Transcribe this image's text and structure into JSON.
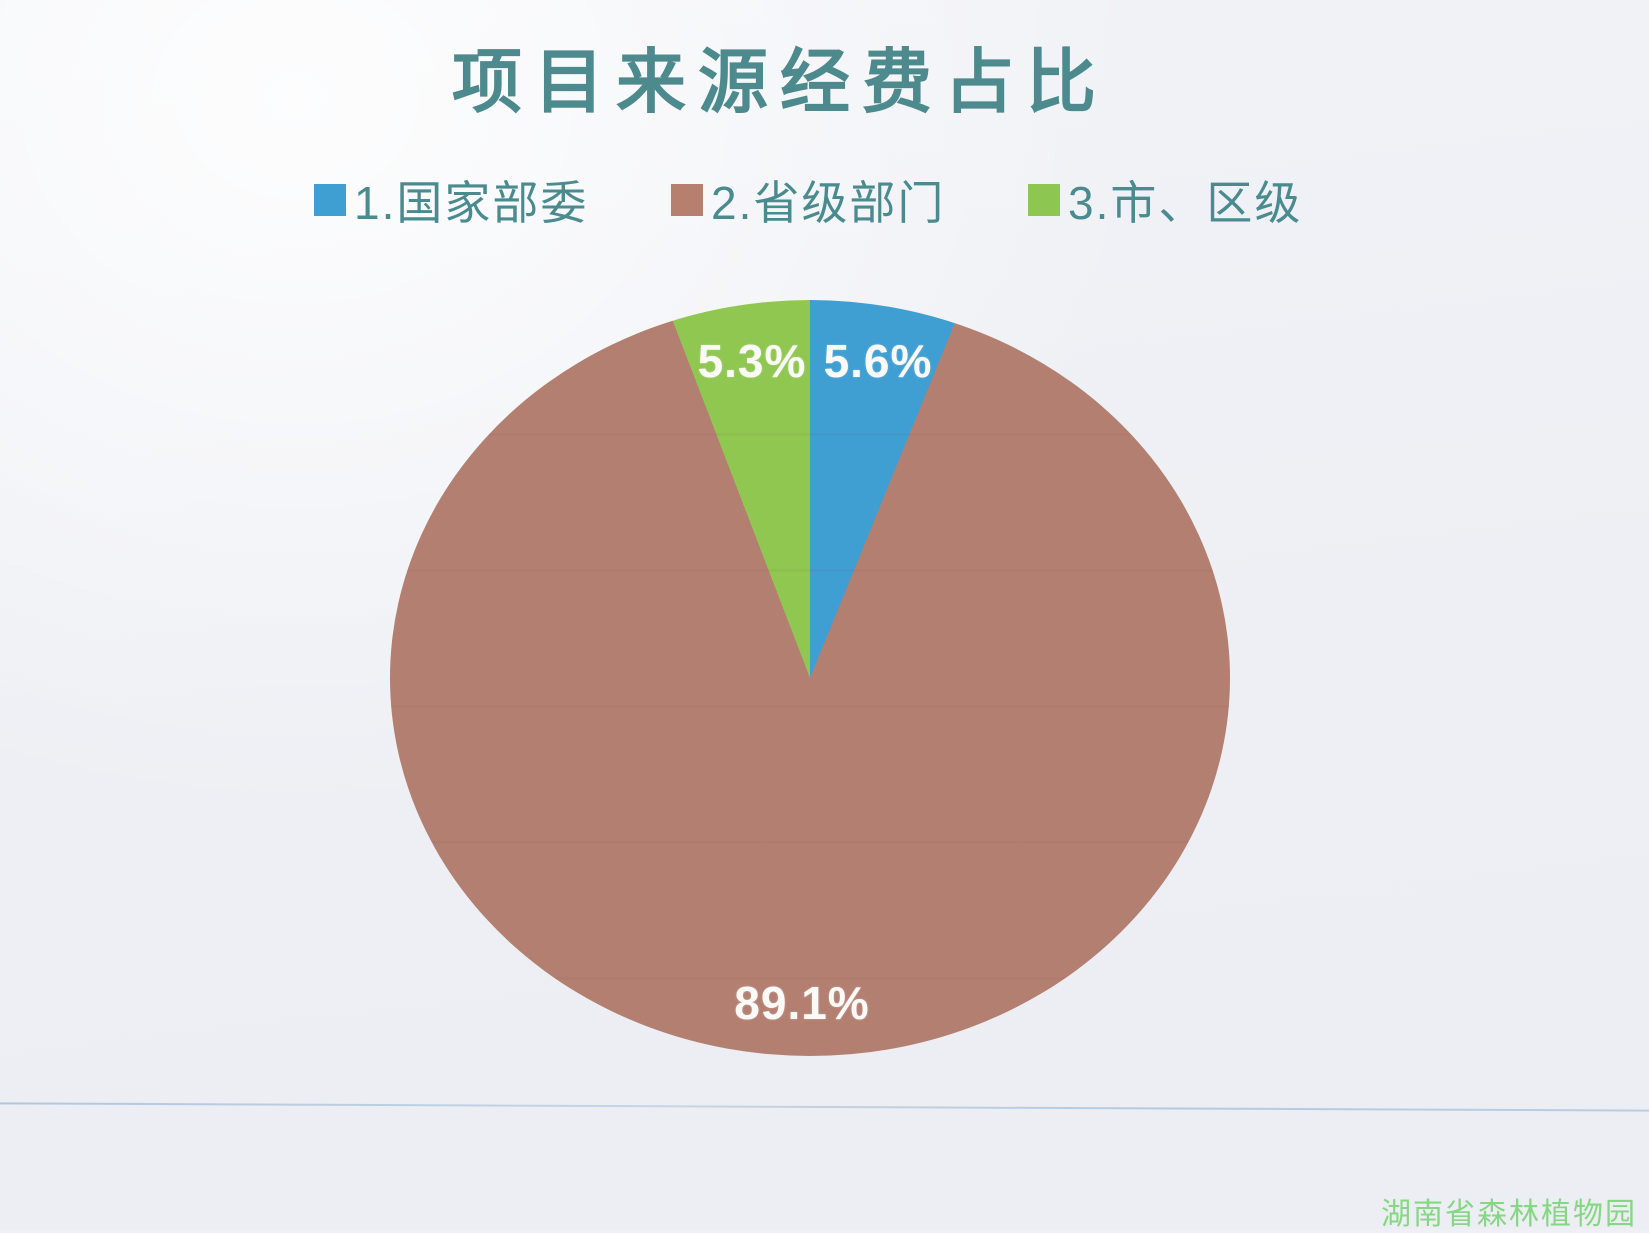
{
  "title": "项目来源经费占比",
  "title_color": "#4d8a8e",
  "legend": {
    "position": "top",
    "text_color": "#4a8b90",
    "items": [
      {
        "label": "1.国家部委",
        "color": "#3f9ed2"
      },
      {
        "label": "2.省级部门",
        "color": "#b77f6e"
      },
      {
        "label": "3.市、区级",
        "color": "#8dc751"
      }
    ]
  },
  "chart_data": {
    "type": "pie",
    "title": "项目来源经费占比",
    "categories": [
      "1.国家部委",
      "2.省级部门",
      "3.市、区级"
    ],
    "values": [
      5.6,
      89.1,
      5.3
    ],
    "unit": "%",
    "colors": [
      "#3f9ed2",
      "#b37f70",
      "#8fc751"
    ],
    "data_labels": [
      "5.6%",
      "89.1%",
      "5.3%"
    ],
    "start_angle_deg": 0,
    "direction": "clockwise",
    "legend_position": "top",
    "label_color": "#ffffff"
  },
  "watermark": {
    "text": "湖南省森林植物园",
    "color": "#85d783"
  },
  "background_color": "#eef0f5",
  "ruled_line_color": "#7da5cd"
}
